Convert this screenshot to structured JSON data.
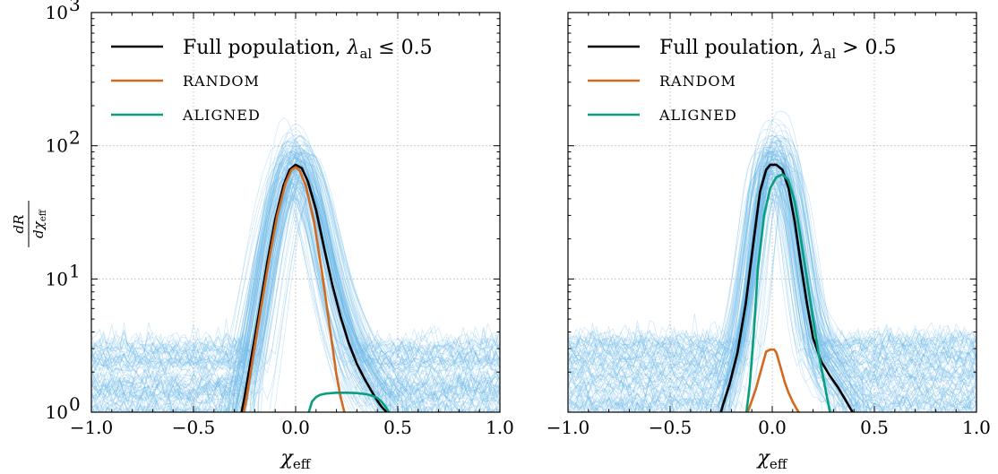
{
  "chart_data": [
    {
      "type": "line",
      "panel": "left",
      "xlabel": "χ",
      "xlabel_sub": "eff",
      "ylabel": "dR / dχ_eff",
      "yscale": "log",
      "xlim": [
        -1.0,
        1.0
      ],
      "ylim": [
        1,
        1000
      ],
      "xticks": [
        "−1.0",
        "−0.5",
        "0.0",
        "0.5",
        "1.0"
      ],
      "yticks": [
        "10",
        "10",
        "10",
        "10"
      ],
      "ytick_exponents": [
        "0",
        "1",
        "2",
        "3"
      ],
      "grid": true,
      "legend": "top-left",
      "legend_entries": [
        {
          "text": "Full population, ",
          "math": "λ",
          "sub": "al",
          "tail": " ≤ 0.5"
        },
        {
          "text": "RANDOM"
        },
        {
          "text": "ALIGNED"
        }
      ],
      "series": [
        {
          "name": "Full population, λal ≤ 0.5",
          "color": "#000000",
          "x": [
            -0.27,
            -0.25,
            -0.22,
            -0.18,
            -0.14,
            -0.1,
            -0.06,
            -0.03,
            0.0,
            0.03,
            0.06,
            0.1,
            0.14,
            0.18,
            0.22,
            0.26,
            0.3,
            0.34,
            0.37,
            0.4,
            0.42,
            0.44,
            0.45
          ],
          "y": [
            0.9,
            1.3,
            2.4,
            5.5,
            13,
            28,
            50,
            66,
            72,
            68,
            54,
            33,
            17,
            9.0,
            5.2,
            3.3,
            2.3,
            1.75,
            1.45,
            1.22,
            1.1,
            1.02,
            0.95
          ]
        },
        {
          "name": "RANDOM",
          "color": "#d2691e",
          "x": [
            -0.26,
            -0.24,
            -0.21,
            -0.17,
            -0.13,
            -0.09,
            -0.05,
            -0.02,
            0.0,
            0.02,
            0.05,
            0.09,
            0.13,
            0.17,
            0.2,
            0.22,
            0.24,
            0.25
          ],
          "y": [
            0.9,
            1.3,
            2.5,
            6.0,
            14,
            30,
            52,
            66,
            69,
            65,
            50,
            27,
            11,
            4.0,
            1.9,
            1.3,
            0.98,
            0.9
          ]
        },
        {
          "name": "ALIGNED",
          "color": "#0a9e80",
          "x": [
            0.06,
            0.08,
            0.1,
            0.12,
            0.15,
            0.2,
            0.25,
            0.3,
            0.35,
            0.38,
            0.4,
            0.42,
            0.44,
            0.46,
            0.47
          ],
          "y": [
            0.95,
            1.2,
            1.3,
            1.35,
            1.38,
            1.4,
            1.4,
            1.39,
            1.36,
            1.32,
            1.28,
            1.2,
            1.1,
            0.98,
            0.9
          ]
        }
      ],
      "background_draws": {
        "color": "#6bb8e8",
        "count": 130,
        "description": "posterior draws"
      }
    },
    {
      "type": "line",
      "panel": "right",
      "xlabel": "χ",
      "xlabel_sub": "eff",
      "yscale": "log",
      "xlim": [
        -1.0,
        1.0
      ],
      "ylim": [
        1,
        1000
      ],
      "xticks": [
        "−1.0",
        "−0.5",
        "0.0",
        "0.5",
        "1.0"
      ],
      "grid": true,
      "legend": "top-left",
      "legend_entries": [
        {
          "text": "Full poulation, ",
          "math": "λ",
          "sub": "al",
          "tail": " > 0.5"
        },
        {
          "text": "RANDOM"
        },
        {
          "text": "ALIGNED"
        }
      ],
      "series": [
        {
          "name": "Full poulation, λal > 0.5",
          "color": "#000000",
          "x": [
            -0.26,
            -0.24,
            -0.21,
            -0.17,
            -0.13,
            -0.09,
            -0.06,
            -0.03,
            -0.01,
            0.02,
            0.05,
            0.08,
            0.11,
            0.14,
            0.17,
            0.2,
            0.24,
            0.28,
            0.32,
            0.35,
            0.37,
            0.39,
            0.4
          ],
          "y": [
            0.9,
            1.15,
            1.6,
            2.8,
            6.5,
            20,
            45,
            66,
            72,
            72,
            66,
            48,
            27,
            13,
            6.5,
            3.6,
            2.4,
            1.9,
            1.55,
            1.3,
            1.15,
            1.02,
            0.9
          ]
        },
        {
          "name": "RANDOM",
          "color": "#d2691e",
          "x": [
            -0.14,
            -0.11,
            -0.08,
            -0.05,
            -0.03,
            -0.01,
            0.01,
            0.02,
            0.04,
            0.06,
            0.08,
            0.1,
            0.12,
            0.14,
            0.15
          ],
          "y": [
            0.85,
            1.1,
            1.5,
            2.2,
            2.85,
            2.95,
            2.95,
            2.8,
            2.2,
            1.7,
            1.4,
            1.2,
            1.05,
            0.95,
            0.88
          ]
        },
        {
          "name": "ALIGNED",
          "color": "#0a9e80",
          "x": [
            -0.13,
            -0.11,
            -0.09,
            -0.07,
            -0.04,
            -0.01,
            0.02,
            0.05,
            0.08,
            0.11,
            0.14,
            0.17,
            0.2,
            0.23,
            0.26,
            0.28,
            0.29
          ],
          "y": [
            0.9,
            1.6,
            4.0,
            12,
            30,
            48,
            58,
            61,
            55,
            38,
            20,
            10,
            5.0,
            2.6,
            1.5,
            1.05,
            0.9
          ]
        }
      ],
      "background_draws": {
        "color": "#6bb8e8",
        "count": 130,
        "description": "posterior draws"
      }
    }
  ]
}
